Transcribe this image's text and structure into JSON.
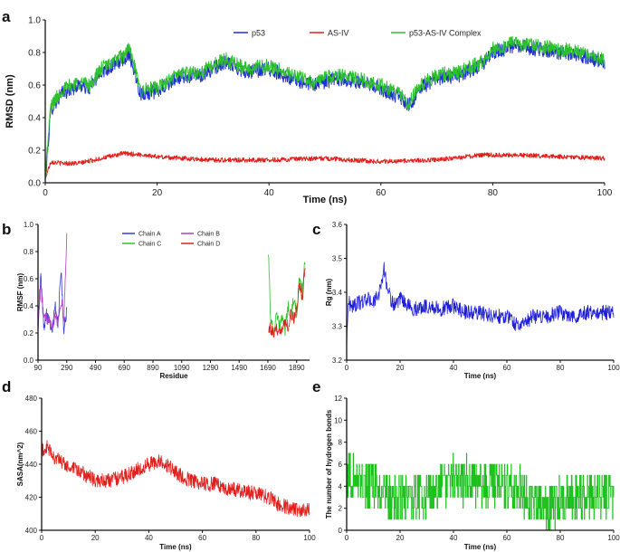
{
  "chart_data": [
    {
      "id": "a",
      "panel_label": "a",
      "type": "line",
      "xlabel": "Time (ns)",
      "ylabel": "RMSD (nm)",
      "xlim": [
        0,
        100
      ],
      "ylim": [
        0,
        1.0
      ],
      "xticks": [
        0,
        20,
        40,
        60,
        80,
        100
      ],
      "yticks": [
        0.0,
        0.2,
        0.4,
        0.6,
        0.8,
        1.0
      ],
      "ytick_labels": [
        "0.0",
        "0.2",
        "0.4",
        "0.6",
        "0.8",
        "1.0"
      ],
      "legend": "top-center",
      "series": [
        {
          "name": "p53",
          "color": "#1f2fd0",
          "noise": 0.045,
          "x": [
            0,
            1,
            3,
            6,
            8,
            10,
            12,
            14,
            15,
            17,
            20,
            24,
            28,
            32,
            36,
            40,
            44,
            48,
            52,
            56,
            60,
            63,
            65,
            67,
            70,
            74,
            78,
            80,
            84,
            88,
            92,
            96,
            100
          ],
          "y": [
            0.02,
            0.45,
            0.55,
            0.6,
            0.58,
            0.68,
            0.72,
            0.76,
            0.8,
            0.55,
            0.56,
            0.65,
            0.66,
            0.74,
            0.68,
            0.7,
            0.64,
            0.6,
            0.64,
            0.62,
            0.58,
            0.53,
            0.47,
            0.58,
            0.64,
            0.66,
            0.72,
            0.8,
            0.84,
            0.82,
            0.8,
            0.78,
            0.74
          ]
        },
        {
          "name": "AS-IV",
          "color": "#e0201c",
          "noise": 0.014,
          "x": [
            0,
            1,
            3,
            6,
            10,
            14,
            18,
            20,
            25,
            30,
            40,
            50,
            60,
            70,
            78,
            85,
            92,
            100
          ],
          "y": [
            0.03,
            0.13,
            0.12,
            0.12,
            0.15,
            0.18,
            0.17,
            0.16,
            0.15,
            0.14,
            0.14,
            0.15,
            0.13,
            0.14,
            0.17,
            0.17,
            0.16,
            0.15
          ]
        },
        {
          "name": "p53-AS-IV Complex",
          "color": "#2ec02e",
          "noise": 0.045,
          "x": [
            0,
            1,
            3,
            6,
            8,
            10,
            12,
            14,
            15,
            17,
            20,
            24,
            28,
            32,
            36,
            40,
            44,
            48,
            52,
            56,
            60,
            63,
            65,
            67,
            70,
            74,
            78,
            80,
            84,
            88,
            92,
            96,
            100
          ],
          "y": [
            0.04,
            0.47,
            0.57,
            0.62,
            0.6,
            0.7,
            0.74,
            0.78,
            0.83,
            0.57,
            0.58,
            0.67,
            0.68,
            0.76,
            0.7,
            0.72,
            0.66,
            0.62,
            0.66,
            0.64,
            0.6,
            0.55,
            0.49,
            0.6,
            0.66,
            0.68,
            0.74,
            0.82,
            0.86,
            0.84,
            0.82,
            0.8,
            0.76
          ]
        }
      ]
    },
    {
      "id": "b",
      "panel_label": "b",
      "type": "line",
      "xlabel": "Residue",
      "ylabel": "RMSF (nm)",
      "xlim": [
        90,
        1980
      ],
      "ylim": [
        0,
        1.0
      ],
      "xticks": [
        90,
        290,
        490,
        690,
        890,
        1090,
        1290,
        1490,
        1690,
        1890
      ],
      "yticks": [
        0.0,
        0.2,
        0.4,
        0.6,
        0.8,
        1.0
      ],
      "ytick_labels": [
        "0.0",
        "0.2",
        "0.4",
        "0.6",
        "0.8",
        "1.0"
      ],
      "legend": "top-center",
      "series": [
        {
          "name": "Chain A",
          "color": "#3a3ad6",
          "noise": 0.05,
          "x": [
            92,
            110,
            130,
            150,
            170,
            190,
            210,
            230,
            250,
            270,
            290
          ],
          "y": [
            0.32,
            0.62,
            0.25,
            0.35,
            0.3,
            0.22,
            0.4,
            0.25,
            0.7,
            0.2,
            0.38
          ]
        },
        {
          "name": "Chain B",
          "color": "#b040c8",
          "noise": 0.05,
          "x": [
            92,
            110,
            130,
            150,
            170,
            190,
            210,
            230,
            250,
            270,
            290
          ],
          "y": [
            0.28,
            0.55,
            0.3,
            0.3,
            0.33,
            0.25,
            0.35,
            0.28,
            0.45,
            0.3,
            0.9
          ]
        },
        {
          "name": "Chain C",
          "color": "#2ec02e",
          "noise": 0.05,
          "x": [
            1693,
            1710,
            1730,
            1750,
            1770,
            1790,
            1810,
            1830,
            1850,
            1870,
            1890,
            1910,
            1930,
            1950
          ],
          "y": [
            0.82,
            0.3,
            0.2,
            0.35,
            0.25,
            0.3,
            0.22,
            0.4,
            0.3,
            0.45,
            0.35,
            0.6,
            0.5,
            0.75
          ]
        },
        {
          "name": "Chain D",
          "color": "#e0201c",
          "noise": 0.05,
          "x": [
            1693,
            1710,
            1730,
            1750,
            1770,
            1790,
            1810,
            1830,
            1850,
            1870,
            1890,
            1910,
            1930,
            1950
          ],
          "y": [
            0.25,
            0.22,
            0.18,
            0.22,
            0.25,
            0.2,
            0.3,
            0.25,
            0.35,
            0.3,
            0.4,
            0.55,
            0.45,
            0.7
          ]
        }
      ]
    },
    {
      "id": "c",
      "panel_label": "c",
      "type": "line",
      "xlabel": "Time (ns)",
      "ylabel": "Rg (nm)",
      "xlim": [
        0,
        100
      ],
      "ylim": [
        3.2,
        3.6
      ],
      "xticks": [
        0,
        20,
        40,
        60,
        80,
        100
      ],
      "yticks": [
        3.2,
        3.3,
        3.4,
        3.5,
        3.6
      ],
      "ytick_labels": [
        "3.2",
        "3.3",
        "3.4",
        "3.5",
        "3.6"
      ],
      "series": [
        {
          "name": "Rg",
          "color": "#1f1fd6",
          "noise": 0.022,
          "x": [
            0,
            0.5,
            2,
            5,
            8,
            10,
            12,
            13,
            14,
            15,
            17,
            19,
            20,
            25,
            30,
            35,
            40,
            45,
            50,
            55,
            60,
            63,
            65,
            70,
            75,
            80,
            85,
            90,
            95,
            100
          ],
          "y": [
            3.24,
            3.37,
            3.36,
            3.37,
            3.38,
            3.37,
            3.39,
            3.43,
            3.47,
            3.42,
            3.37,
            3.36,
            3.38,
            3.35,
            3.36,
            3.35,
            3.36,
            3.34,
            3.34,
            3.33,
            3.33,
            3.31,
            3.3,
            3.33,
            3.33,
            3.34,
            3.33,
            3.34,
            3.34,
            3.34
          ]
        }
      ]
    },
    {
      "id": "d",
      "panel_label": "d",
      "type": "line",
      "xlabel": "Time (ns)",
      "ylabel": "SASA(nm^2)",
      "xlim": [
        0,
        100
      ],
      "ylim": [
        400,
        480
      ],
      "xticks": [
        0,
        20,
        40,
        60,
        80,
        100
      ],
      "yticks": [
        400,
        420,
        440,
        460,
        480
      ],
      "ytick_labels": [
        "400",
        "420",
        "440",
        "460",
        "480"
      ],
      "series": [
        {
          "name": "SASA",
          "color": "#e0201c",
          "noise": 4.5,
          "x": [
            0,
            2,
            5,
            10,
            15,
            20,
            25,
            30,
            35,
            40,
            44,
            48,
            52,
            56,
            60,
            65,
            70,
            75,
            80,
            85,
            88,
            92,
            96,
            100
          ],
          "y": [
            448,
            450,
            444,
            438,
            435,
            430,
            430,
            432,
            436,
            440,
            442,
            438,
            433,
            430,
            428,
            428,
            425,
            424,
            422,
            420,
            416,
            414,
            412,
            412
          ]
        }
      ]
    },
    {
      "id": "e",
      "panel_label": "e",
      "type": "line",
      "xlabel": "Time (ns)",
      "ylabel": "The number of hydrogen bonds",
      "xlim": [
        0,
        100
      ],
      "ylim": [
        0,
        12
      ],
      "xticks": [
        0,
        20,
        40,
        60,
        80,
        100
      ],
      "yticks": [
        0,
        2,
        4,
        6,
        8,
        10,
        12
      ],
      "ytick_labels": [
        "0",
        "2",
        "4",
        "6",
        "8",
        "10",
        "12"
      ],
      "series": [
        {
          "name": "H-bonds",
          "color": "#18c018",
          "noise": 2.2,
          "x": [
            0,
            2,
            5,
            10,
            15,
            20,
            25,
            30,
            35,
            40,
            45,
            50,
            55,
            60,
            65,
            70,
            75,
            80,
            85,
            90,
            95,
            100
          ],
          "y": [
            5,
            5,
            4.5,
            4,
            3,
            2.8,
            3,
            3.5,
            4,
            4.5,
            4.5,
            4,
            4,
            4,
            3.5,
            2.8,
            2.5,
            2.5,
            3,
            3,
            3,
            3
          ]
        }
      ]
    }
  ]
}
